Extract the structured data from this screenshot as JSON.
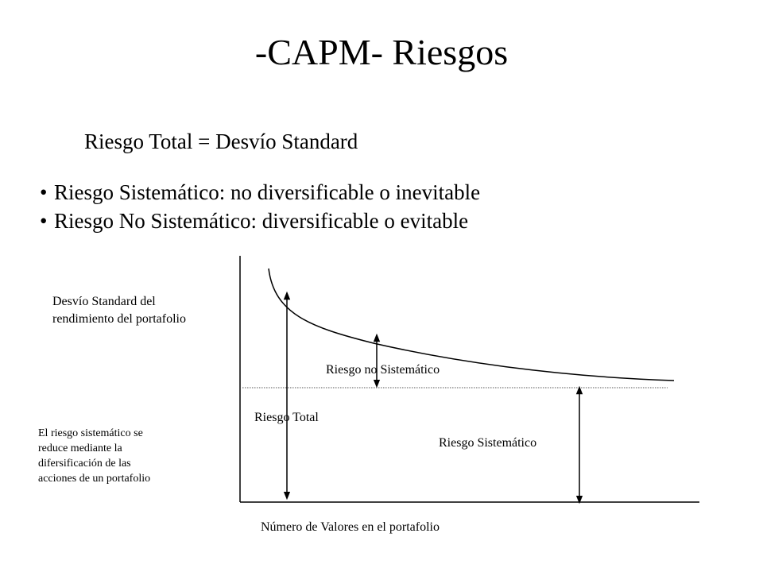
{
  "slide": {
    "title": "-CAPM- Riesgos",
    "subtitle": "Riesgo Total = Desvío Standard",
    "bullets": [
      "Riesgo Sistemático: no diversificable o inevitable",
      "Riesgo No Sistemático: diversificable o evitable"
    ],
    "bullet_glyph": "•"
  },
  "diagram": {
    "y_label_line1": "Desvío Standard del",
    "y_label_line2": "rendimiento del portafolio",
    "x_label": "Número de Valores en el portafolio",
    "label_nonsystematic": "Riesgo no Sistemático",
    "label_total": "Riesgo Total",
    "label_systematic": "Riesgo Sistemático",
    "note_lines": [
      "El riesgo sistemático se",
      "reduce mediante la",
      "difersificación de las",
      "acciones de un portafolio"
    ]
  }
}
